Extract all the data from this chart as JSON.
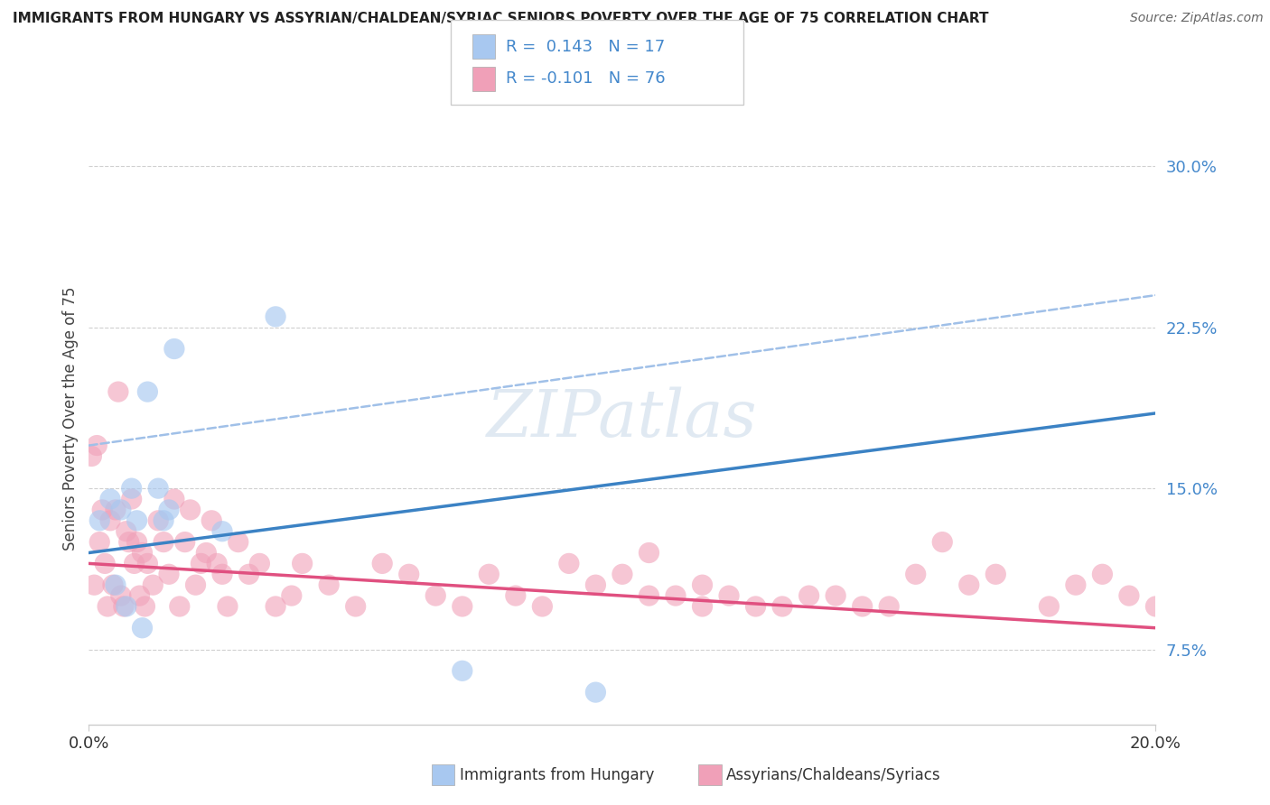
{
  "title": "IMMIGRANTS FROM HUNGARY VS ASSYRIAN/CHALDEAN/SYRIAC SENIORS POVERTY OVER THE AGE OF 75 CORRELATION CHART",
  "source": "Source: ZipAtlas.com",
  "ylabel": "Seniors Poverty Over the Age of 75",
  "y_ticks": [
    7.5,
    15.0,
    22.5,
    30.0
  ],
  "y_tick_labels": [
    "7.5%",
    "15.0%",
    "22.5%",
    "30.0%"
  ],
  "x_min": 0.0,
  "x_max": 20.0,
  "y_min": 4.0,
  "y_max": 32.5,
  "blue_color": "#a8c8f0",
  "pink_color": "#f0a0b8",
  "blue_line_color": "#3b82c4",
  "pink_line_color": "#e05080",
  "blue_dashed_color": "#a0c0e8",
  "watermark_text": "ZIPatlas",
  "blue_scatter_x": [
    0.2,
    0.4,
    0.5,
    0.6,
    0.7,
    0.8,
    0.9,
    1.0,
    1.1,
    1.3,
    1.4,
    1.5,
    1.6,
    2.5,
    3.5,
    7.0,
    9.5
  ],
  "blue_scatter_y": [
    13.5,
    14.5,
    10.5,
    14.0,
    9.5,
    15.0,
    13.5,
    8.5,
    19.5,
    15.0,
    13.5,
    14.0,
    21.5,
    13.0,
    23.0,
    6.5,
    5.5
  ],
  "pink_scatter_x": [
    0.05,
    0.1,
    0.15,
    0.2,
    0.25,
    0.3,
    0.35,
    0.4,
    0.45,
    0.5,
    0.55,
    0.6,
    0.65,
    0.7,
    0.75,
    0.8,
    0.85,
    0.9,
    0.95,
    1.0,
    1.05,
    1.1,
    1.2,
    1.3,
    1.4,
    1.5,
    1.6,
    1.7,
    1.8,
    1.9,
    2.0,
    2.1,
    2.2,
    2.3,
    2.4,
    2.5,
    2.6,
    2.8,
    3.0,
    3.2,
    3.5,
    3.8,
    4.0,
    4.5,
    5.0,
    5.5,
    6.0,
    6.5,
    7.0,
    7.5,
    8.0,
    8.5,
    9.0,
    9.5,
    10.0,
    10.5,
    11.0,
    11.5,
    12.0,
    13.0,
    14.0,
    15.0,
    16.0,
    17.0,
    18.0,
    18.5,
    19.0,
    19.5,
    20.0,
    15.5,
    16.5,
    14.5,
    13.5,
    12.5,
    11.5,
    10.5
  ],
  "pink_scatter_y": [
    16.5,
    10.5,
    17.0,
    12.5,
    14.0,
    11.5,
    9.5,
    13.5,
    10.5,
    14.0,
    19.5,
    10.0,
    9.5,
    13.0,
    12.5,
    14.5,
    11.5,
    12.5,
    10.0,
    12.0,
    9.5,
    11.5,
    10.5,
    13.5,
    12.5,
    11.0,
    14.5,
    9.5,
    12.5,
    14.0,
    10.5,
    11.5,
    12.0,
    13.5,
    11.5,
    11.0,
    9.5,
    12.5,
    11.0,
    11.5,
    9.5,
    10.0,
    11.5,
    10.5,
    9.5,
    11.5,
    11.0,
    10.0,
    9.5,
    11.0,
    10.0,
    9.5,
    11.5,
    10.5,
    11.0,
    12.0,
    10.0,
    10.5,
    10.0,
    9.5,
    10.0,
    9.5,
    12.5,
    11.0,
    9.5,
    10.5,
    11.0,
    10.0,
    9.5,
    11.0,
    10.5,
    9.5,
    10.0,
    9.5,
    9.5,
    10.0
  ],
  "blue_line_x0": 0.0,
  "blue_line_y0": 12.0,
  "blue_line_x1": 20.0,
  "blue_line_y1": 18.5,
  "blue_dash_x0": 0.0,
  "blue_dash_y0": 17.0,
  "blue_dash_x1": 20.0,
  "blue_dash_y1": 24.0,
  "pink_line_x0": 0.0,
  "pink_line_y0": 11.5,
  "pink_line_x1": 20.0,
  "pink_line_y1": 8.5
}
